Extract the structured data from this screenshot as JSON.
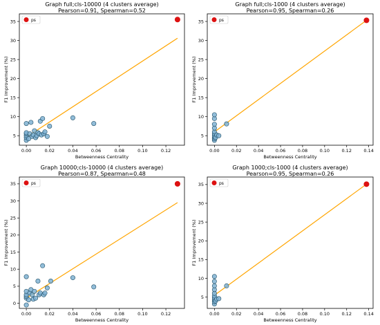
{
  "chart_data": [
    {
      "type": "scatter",
      "title": "Graph full;cls-10000 (4 clusters average)",
      "subtitle": "Pearson=0.91, Spearman=0.52",
      "xlabel": "Betweenness Centrality",
      "ylabel": "F1 Improvement (%)",
      "xlim": [
        -0.006,
        0.136
      ],
      "ylim": [
        2.5,
        37
      ],
      "xticks": [
        0.0,
        0.02,
        0.04,
        0.06,
        0.08,
        0.1,
        0.12
      ],
      "yticks": [
        5,
        10,
        15,
        20,
        25,
        30,
        35
      ],
      "legend": {
        "label": "ps",
        "position": "top-left"
      },
      "highlight": {
        "name": "ps",
        "x": 0.13,
        "y": 35.5,
        "color": "#dd1111"
      },
      "trend": {
        "x": [
          0.0,
          0.13
        ],
        "y": [
          4.6,
          30.6
        ],
        "color": "#ffa500"
      },
      "points": {
        "color": "#7fb2d2",
        "x": [
          0.0,
          0.0,
          0.0,
          0.0,
          0.0,
          0.0,
          0.002,
          0.003,
          0.004,
          0.005,
          0.006,
          0.007,
          0.008,
          0.009,
          0.01,
          0.011,
          0.012,
          0.013,
          0.014,
          0.015,
          0.016,
          0.018,
          0.02,
          0.04,
          0.058
        ],
        "y": [
          3.8,
          4.5,
          5.0,
          5.5,
          5.8,
          8.2,
          4.2,
          5.5,
          8.5,
          4.8,
          5.2,
          6.3,
          4.5,
          5.0,
          5.8,
          5.5,
          8.8,
          5.2,
          9.5,
          5.5,
          6.0,
          4.8,
          7.5,
          9.7,
          8.2
        ]
      }
    },
    {
      "type": "scatter",
      "title": "Graph full;cls-1000 (4 clusters average)",
      "subtitle": "Pearson=0.95, Spearman=0.26",
      "xlabel": "Betweenness Centrality",
      "ylabel": "F1 Improvement (%)",
      "xlim": [
        -0.0065,
        0.144
      ],
      "ylim": [
        2.5,
        37
      ],
      "xticks": [
        0.0,
        0.02,
        0.04,
        0.06,
        0.08,
        0.1,
        0.12,
        0.14
      ],
      "yticks": [
        5,
        10,
        15,
        20,
        25,
        30,
        35
      ],
      "legend": {
        "label": "ps",
        "position": "top-left"
      },
      "highlight": {
        "name": "ps",
        "x": 0.138,
        "y": 35.3,
        "color": "#dd1111"
      },
      "trend": {
        "x": [
          0.0,
          0.138
        ],
        "y": [
          6.0,
          35.3
        ],
        "color": "#ffa500"
      },
      "points": {
        "color": "#7fb2d2",
        "x": [
          0.0,
          0.0,
          0.0,
          0.0,
          0.0,
          0.0,
          0.0,
          0.0,
          0.0,
          0.0,
          0.001,
          0.002,
          0.004,
          0.011
        ],
        "y": [
          3.8,
          4.2,
          4.6,
          5.0,
          5.5,
          6.0,
          7.0,
          8.0,
          9.5,
          10.5,
          4.5,
          5.2,
          5.0,
          8.1
        ]
      }
    },
    {
      "type": "scatter",
      "title": "Graph 10000;cls-10000 (4 clusters average)",
      "subtitle": "Pearson=0.87, Spearman=0.48",
      "xlabel": "Betweenness Centrality",
      "ylabel": "F1 Improvement (%)",
      "xlim": [
        -0.006,
        0.136
      ],
      "ylim": [
        -1.5,
        37
      ],
      "xticks": [
        0.0,
        0.02,
        0.04,
        0.06,
        0.08,
        0.1,
        0.12
      ],
      "yticks": [
        0,
        5,
        10,
        15,
        20,
        25,
        30,
        35
      ],
      "legend": {
        "label": "ps",
        "position": "top-left"
      },
      "highlight": {
        "name": "ps",
        "x": 0.13,
        "y": 35.0,
        "color": "#dd1111"
      },
      "trend": {
        "x": [
          0.0,
          0.13
        ],
        "y": [
          1.5,
          29.5
        ],
        "color": "#ffa500"
      },
      "points": {
        "color": "#7fb2d2",
        "x": [
          0.0,
          0.0,
          0.0,
          0.0,
          0.0,
          0.0,
          0.002,
          0.003,
          0.004,
          0.005,
          0.006,
          0.007,
          0.008,
          0.01,
          0.011,
          0.012,
          0.014,
          0.015,
          0.016,
          0.018,
          0.021,
          0.04,
          0.058
        ],
        "y": [
          -0.5,
          1.5,
          2.0,
          2.5,
          3.5,
          7.8,
          1.0,
          3.0,
          4.0,
          2.5,
          1.2,
          3.5,
          1.5,
          6.5,
          2.5,
          3.0,
          11.0,
          2.5,
          3.0,
          4.5,
          6.5,
          7.5,
          4.8
        ]
      }
    },
    {
      "type": "scatter",
      "title": "Graph 1000;cls-1000 (4 clusters average)",
      "subtitle": "Pearson=0.95, Spearman=0.26",
      "xlabel": "Betweenness Centrality",
      "ylabel": "F1 Improvement (%)",
      "xlim": [
        -0.0065,
        0.144
      ],
      "ylim": [
        2.0,
        37
      ],
      "xticks": [
        0.0,
        0.02,
        0.04,
        0.06,
        0.08,
        0.1,
        0.12,
        0.14
      ],
      "yticks": [
        5,
        10,
        15,
        20,
        25,
        30,
        35
      ],
      "legend": {
        "label": "ps",
        "position": "top-left"
      },
      "highlight": {
        "name": "ps",
        "x": 0.138,
        "y": 35.1,
        "color": "#dd1111"
      },
      "trend": {
        "x": [
          0.0,
          0.138
        ],
        "y": [
          5.5,
          35.1
        ],
        "color": "#ffa500"
      },
      "points": {
        "color": "#7fb2d2",
        "x": [
          0.0,
          0.0,
          0.0,
          0.0,
          0.0,
          0.0,
          0.0,
          0.0,
          0.0,
          0.0,
          0.001,
          0.002,
          0.004,
          0.011
        ],
        "y": [
          3.2,
          3.8,
          4.3,
          4.8,
          5.3,
          6.0,
          7.0,
          8.0,
          9.2,
          10.5,
          4.0,
          4.5,
          4.6,
          8.0
        ]
      }
    }
  ]
}
